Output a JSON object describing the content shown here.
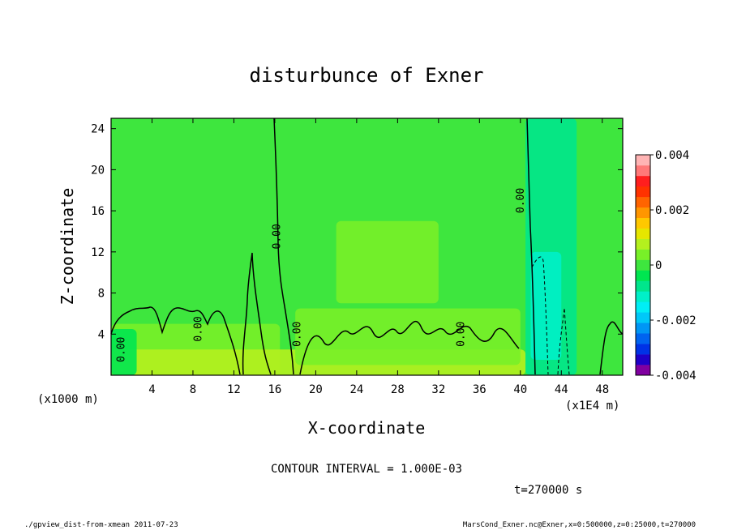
{
  "chart_data": {
    "type": "heatmap",
    "title": "disturbunce of Exner",
    "xlabel": "X-coordinate",
    "ylabel": "Z-coordinate",
    "x_unit_label": "(x1000 m)",
    "x_scale_label": "(x1E4 m)",
    "xlim": [
      0,
      50
    ],
    "ylim": [
      0,
      25
    ],
    "xticks": [
      4,
      8,
      12,
      16,
      20,
      24,
      28,
      32,
      36,
      40,
      44,
      48
    ],
    "yticks": [
      4,
      8,
      12,
      16,
      20,
      24
    ],
    "contour_interval_text": "CONTOUR INTERVAL = 1.000E-03",
    "time_text": "t=270000 s",
    "contour_labels": [
      {
        "text": "0.00",
        "x": 1.0,
        "z": 2.5
      },
      {
        "text": "0.00",
        "x": 8.5,
        "z": 4.5
      },
      {
        "text": "0.00",
        "x": 16.2,
        "z": 13.5
      },
      {
        "text": "0.00",
        "x": 18.2,
        "z": 4.0
      },
      {
        "text": "0.00",
        "x": 34.2,
        "z": 4.0
      },
      {
        "text": "0.00",
        "x": 40.0,
        "z": 17.0
      }
    ],
    "colorbar": {
      "min": -0.004,
      "max": 0.004,
      "tick_labels": [
        "0.004",
        "0.002",
        "0",
        "-0.002",
        "-0.004"
      ],
      "tick_values": [
        0.004,
        0.002,
        0,
        -0.002,
        -0.004
      ],
      "colors": [
        "#8000a0",
        "#1e00c8",
        "#0032e6",
        "#0064f0",
        "#0096f5",
        "#00c8f8",
        "#00eef5",
        "#00f0c8",
        "#00e68c",
        "#00e650",
        "#3ee63e",
        "#78f028",
        "#b4f01e",
        "#e6e600",
        "#ffc800",
        "#ff9600",
        "#ff6400",
        "#ff3200",
        "#ff1e1e",
        "#ff7878",
        "#ffb4b4"
      ]
    },
    "regions": [
      {
        "x": [
          0,
          50
        ],
        "z": [
          0,
          25
        ],
        "value": 0
      },
      {
        "x": [
          0,
          16.5
        ],
        "z": [
          0,
          5
        ],
        "value": 0.0005
      },
      {
        "x": [
          0,
          40.5
        ],
        "z": [
          0,
          2.5
        ],
        "value": 0.0007
      },
      {
        "x": [
          22,
          32
        ],
        "z": [
          7,
          15
        ],
        "value": 0.0005
      },
      {
        "x": [
          18,
          40
        ],
        "z": [
          1,
          6.5
        ],
        "value": 0.0004
      },
      {
        "x": [
          40.5,
          45.5
        ],
        "z": [
          0,
          25
        ],
        "value": -0.0006
      },
      {
        "x": [
          41,
          44
        ],
        "z": [
          1.5,
          12
        ],
        "value": -0.0013
      },
      {
        "x": [
          0,
          2.5
        ],
        "z": [
          0,
          4.5
        ],
        "value": -0.0003
      }
    ]
  },
  "footer": {
    "left": "./gpview_dist-from-xmean  2011-07-23",
    "right": "MarsCond_Exner.nc@Exner,x=0:500000,z=0:25000,t=270000"
  }
}
